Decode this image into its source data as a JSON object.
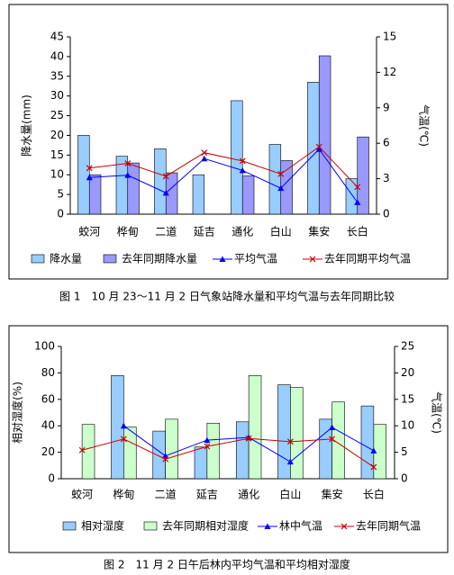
{
  "chart_data": [
    {
      "type": "bar",
      "title": "图 1　10 月 23～11 月 2 日气象站降水量和平均气温与去年同期比较",
      "y_label": "降水量(mm)",
      "y2_label": "气温(℃)",
      "categories": [
        "蛟河",
        "桦甸",
        "二道",
        "延吉",
        "通化",
        "白山",
        "集安",
        "长白"
      ],
      "ylim": [
        0,
        45
      ],
      "yticks": [
        0,
        5,
        10,
        15,
        20,
        25,
        30,
        35,
        40,
        45
      ],
      "y2lim": [
        0,
        15
      ],
      "y2ticks": [
        0,
        3,
        6,
        9,
        12,
        15
      ],
      "series": [
        {
          "name": "降水量",
          "type": "bar",
          "color": "#99ccff",
          "values": [
            20,
            14.7,
            16.6,
            10,
            28.8,
            17.7,
            33.5,
            9
          ]
        },
        {
          "name": "去年同期降水量",
          "type": "bar",
          "color": "#9999ff",
          "values": [
            10,
            13,
            10.5,
            null,
            9.7,
            13.6,
            40.2,
            19.6
          ]
        },
        {
          "name": "平均气温",
          "type": "line",
          "marker": "triangle",
          "color": "#0000ff",
          "axis": "y2",
          "values": [
            3.1,
            3.3,
            1.8,
            4.7,
            3.7,
            2.2,
            5.5,
            1.0
          ]
        },
        {
          "name": "去年同期平均气温",
          "type": "line",
          "marker": "x",
          "color": "#cc0000",
          "axis": "y2",
          "values": [
            3.9,
            4.3,
            3.2,
            5.2,
            4.5,
            3.4,
            5.7,
            2.3
          ]
        }
      ]
    },
    {
      "type": "bar",
      "title": "图 2　11 月 2 日午后林内平均气温和平均相对湿度",
      "y_label": "相对湿度(%)",
      "y2_label": "气温(℃)",
      "categories": [
        "蛟河",
        "桦甸",
        "二道",
        "延吉",
        "通化",
        "白山",
        "集安",
        "长白"
      ],
      "ylim": [
        0,
        100
      ],
      "yticks": [
        0,
        20,
        40,
        60,
        80,
        100
      ],
      "y2lim": [
        0,
        25
      ],
      "y2ticks": [
        0,
        5,
        10,
        15,
        20,
        25
      ],
      "series": [
        {
          "name": "相对湿度",
          "type": "bar",
          "color": "#99ccff",
          "values": [
            null,
            78,
            36,
            24,
            43,
            71,
            45,
            55
          ]
        },
        {
          "name": "去年同期相对湿度",
          "type": "bar",
          "color": "#ccffcc",
          "values": [
            41,
            39,
            45,
            42,
            78,
            69,
            58,
            41
          ]
        },
        {
          "name": "林中气温",
          "type": "line",
          "marker": "triangle",
          "color": "#0000ff",
          "axis": "y2",
          "values": [
            null,
            10,
            4.3,
            7.3,
            7.8,
            3.2,
            9.7,
            5.3
          ]
        },
        {
          "name": "去年同期气温",
          "type": "line",
          "marker": "x",
          "color": "#cc0000",
          "axis": "y2",
          "values": [
            5.4,
            7.5,
            3.7,
            6.1,
            7.6,
            7.0,
            7.5,
            2.2
          ]
        }
      ]
    }
  ]
}
